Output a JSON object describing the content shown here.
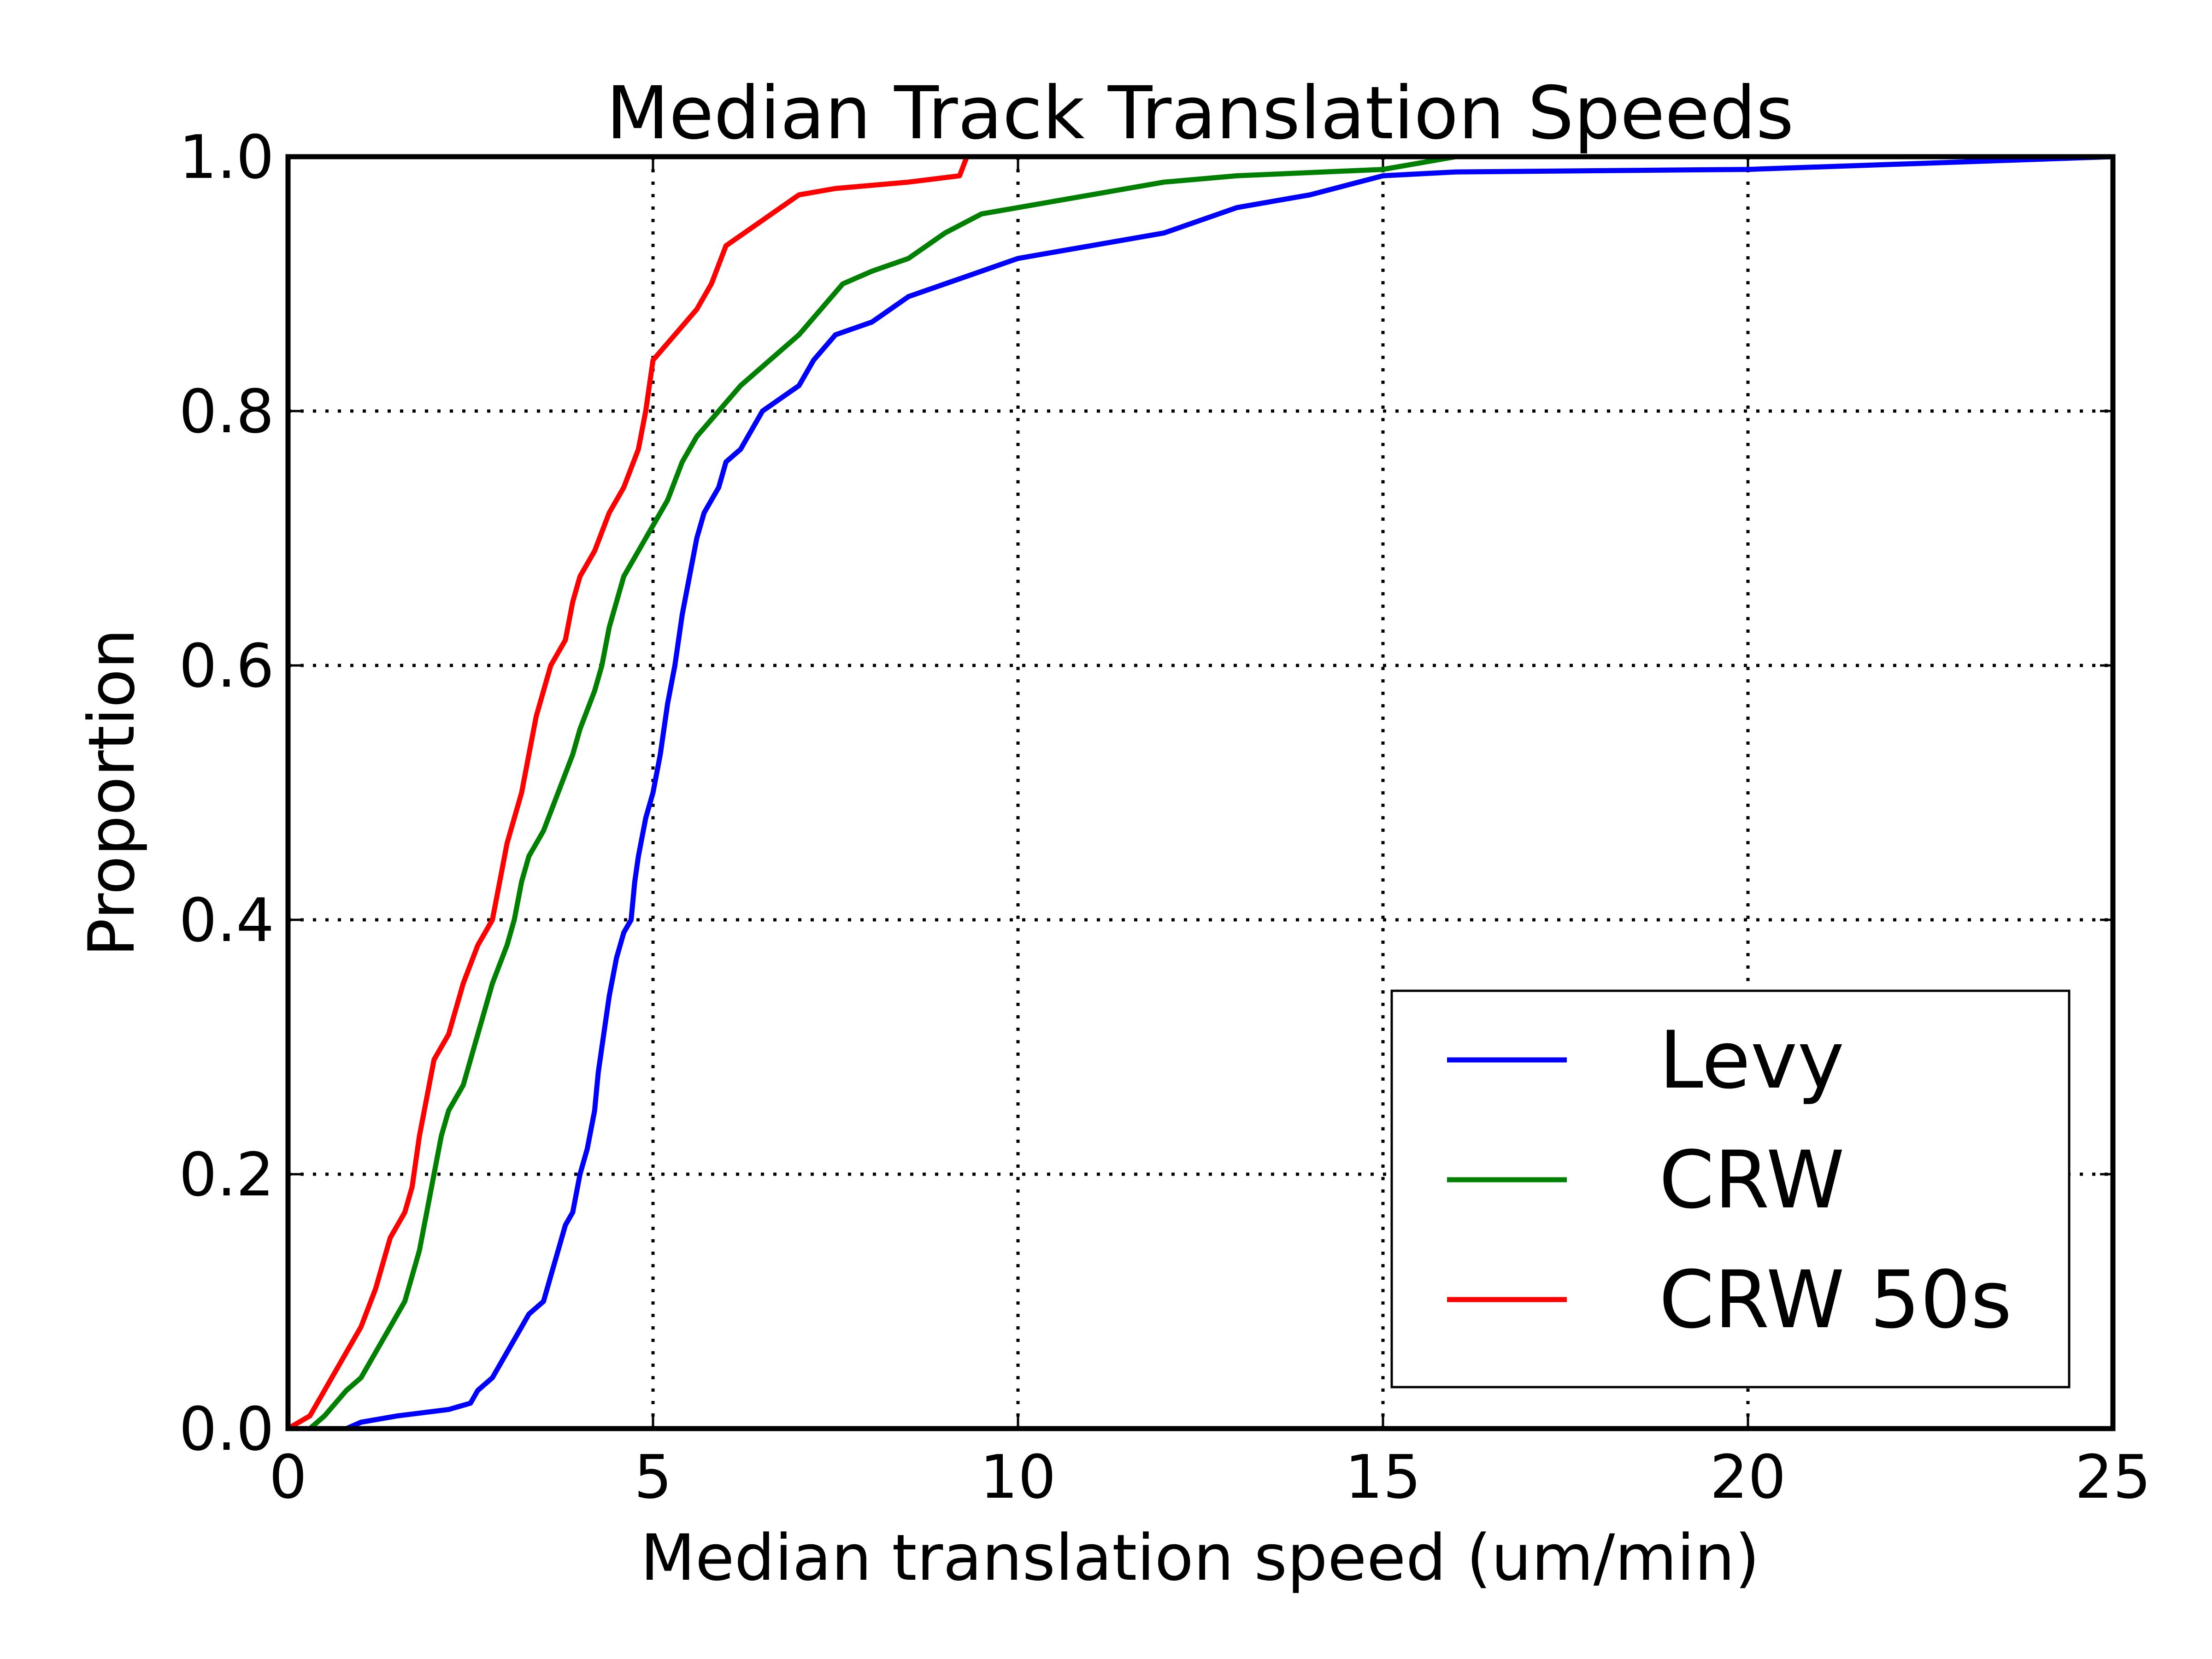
{
  "chart_data": {
    "type": "line",
    "title": "Median Track Translation Speeds",
    "xlabel": "Median translation speed (um/min)",
    "ylabel": "Proportion",
    "xlim": [
      0,
      25
    ],
    "ylim": [
      0.0,
      1.0
    ],
    "x_ticks": [
      "0",
      "5",
      "10",
      "15",
      "20",
      "25"
    ],
    "y_ticks": [
      "0.0",
      "0.2",
      "0.4",
      "0.6",
      "0.8",
      "1.0"
    ],
    "grid": true,
    "legend_position": "lower-right",
    "series": [
      {
        "name": "Levy",
        "color": "#0000ff",
        "points": [
          [
            0.8,
            0.0
          ],
          [
            1.0,
            0.005
          ],
          [
            1.5,
            0.01
          ],
          [
            2.2,
            0.015
          ],
          [
            2.5,
            0.02
          ],
          [
            2.6,
            0.03
          ],
          [
            2.8,
            0.04
          ],
          [
            3.0,
            0.06
          ],
          [
            3.2,
            0.08
          ],
          [
            3.3,
            0.09
          ],
          [
            3.5,
            0.1
          ],
          [
            3.6,
            0.12
          ],
          [
            3.7,
            0.14
          ],
          [
            3.8,
            0.16
          ],
          [
            3.9,
            0.17
          ],
          [
            4.0,
            0.2
          ],
          [
            4.1,
            0.22
          ],
          [
            4.2,
            0.25
          ],
          [
            4.25,
            0.28
          ],
          [
            4.3,
            0.3
          ],
          [
            4.4,
            0.34
          ],
          [
            4.5,
            0.37
          ],
          [
            4.6,
            0.39
          ],
          [
            4.7,
            0.4
          ],
          [
            4.75,
            0.43
          ],
          [
            4.8,
            0.45
          ],
          [
            4.9,
            0.48
          ],
          [
            5.0,
            0.5
          ],
          [
            5.1,
            0.53
          ],
          [
            5.2,
            0.57
          ],
          [
            5.3,
            0.6
          ],
          [
            5.4,
            0.64
          ],
          [
            5.5,
            0.67
          ],
          [
            5.6,
            0.7
          ],
          [
            5.7,
            0.72
          ],
          [
            5.9,
            0.74
          ],
          [
            6.0,
            0.76
          ],
          [
            6.2,
            0.77
          ],
          [
            6.3,
            0.78
          ],
          [
            6.5,
            0.8
          ],
          [
            7.0,
            0.82
          ],
          [
            7.2,
            0.84
          ],
          [
            7.5,
            0.86
          ],
          [
            8.0,
            0.87
          ],
          [
            8.5,
            0.89
          ],
          [
            9.0,
            0.9
          ],
          [
            9.5,
            0.91
          ],
          [
            10.0,
            0.92
          ],
          [
            11.0,
            0.93
          ],
          [
            12.0,
            0.94
          ],
          [
            13.0,
            0.96
          ],
          [
            14.0,
            0.97
          ],
          [
            15.0,
            0.985
          ],
          [
            16.0,
            0.988
          ],
          [
            20.0,
            0.99
          ],
          [
            25.0,
            1.0
          ]
        ]
      },
      {
        "name": "CRW",
        "color": "#008000",
        "points": [
          [
            0.3,
            0.0
          ],
          [
            0.5,
            0.01
          ],
          [
            0.8,
            0.03
          ],
          [
            1.0,
            0.04
          ],
          [
            1.2,
            0.06
          ],
          [
            1.4,
            0.08
          ],
          [
            1.6,
            0.1
          ],
          [
            1.7,
            0.12
          ],
          [
            1.8,
            0.14
          ],
          [
            1.9,
            0.17
          ],
          [
            2.0,
            0.2
          ],
          [
            2.1,
            0.23
          ],
          [
            2.2,
            0.25
          ],
          [
            2.4,
            0.27
          ],
          [
            2.5,
            0.29
          ],
          [
            2.6,
            0.31
          ],
          [
            2.7,
            0.33
          ],
          [
            2.8,
            0.35
          ],
          [
            3.0,
            0.38
          ],
          [
            3.1,
            0.4
          ],
          [
            3.2,
            0.43
          ],
          [
            3.3,
            0.45
          ],
          [
            3.5,
            0.47
          ],
          [
            3.7,
            0.5
          ],
          [
            3.9,
            0.53
          ],
          [
            4.0,
            0.55
          ],
          [
            4.2,
            0.58
          ],
          [
            4.3,
            0.6
          ],
          [
            4.4,
            0.63
          ],
          [
            4.5,
            0.65
          ],
          [
            4.6,
            0.67
          ],
          [
            4.8,
            0.69
          ],
          [
            5.0,
            0.71
          ],
          [
            5.2,
            0.73
          ],
          [
            5.4,
            0.76
          ],
          [
            5.6,
            0.78
          ],
          [
            5.9,
            0.8
          ],
          [
            6.2,
            0.82
          ],
          [
            6.6,
            0.84
          ],
          [
            7.0,
            0.86
          ],
          [
            7.3,
            0.88
          ],
          [
            7.6,
            0.9
          ],
          [
            8.0,
            0.91
          ],
          [
            8.5,
            0.92
          ],
          [
            9.0,
            0.94
          ],
          [
            9.5,
            0.955
          ],
          [
            10.0,
            0.96
          ],
          [
            11.0,
            0.97
          ],
          [
            12.0,
            0.98
          ],
          [
            13.0,
            0.985
          ],
          [
            15.0,
            0.99
          ],
          [
            16.0,
            1.0
          ]
        ]
      },
      {
        "name": "CRW 50s",
        "color": "#ff0000",
        "points": [
          [
            0.0,
            0.0
          ],
          [
            0.3,
            0.01
          ],
          [
            0.5,
            0.03
          ],
          [
            0.8,
            0.06
          ],
          [
            1.0,
            0.08
          ],
          [
            1.2,
            0.11
          ],
          [
            1.4,
            0.15
          ],
          [
            1.6,
            0.17
          ],
          [
            1.7,
            0.19
          ],
          [
            1.8,
            0.23
          ],
          [
            1.9,
            0.26
          ],
          [
            2.0,
            0.29
          ],
          [
            2.2,
            0.31
          ],
          [
            2.4,
            0.35
          ],
          [
            2.6,
            0.38
          ],
          [
            2.8,
            0.4
          ],
          [
            2.9,
            0.43
          ],
          [
            3.0,
            0.46
          ],
          [
            3.2,
            0.5
          ],
          [
            3.3,
            0.53
          ],
          [
            3.4,
            0.56
          ],
          [
            3.5,
            0.58
          ],
          [
            3.6,
            0.6
          ],
          [
            3.8,
            0.62
          ],
          [
            3.9,
            0.65
          ],
          [
            4.0,
            0.67
          ],
          [
            4.2,
            0.69
          ],
          [
            4.4,
            0.72
          ],
          [
            4.6,
            0.74
          ],
          [
            4.8,
            0.77
          ],
          [
            4.9,
            0.8
          ],
          [
            5.0,
            0.84
          ],
          [
            5.3,
            0.86
          ],
          [
            5.6,
            0.88
          ],
          [
            5.8,
            0.9
          ],
          [
            6.0,
            0.93
          ],
          [
            6.5,
            0.95
          ],
          [
            7.0,
            0.97
          ],
          [
            7.5,
            0.975
          ],
          [
            8.5,
            0.98
          ],
          [
            9.2,
            0.985
          ],
          [
            9.3,
            1.0
          ]
        ]
      }
    ]
  }
}
